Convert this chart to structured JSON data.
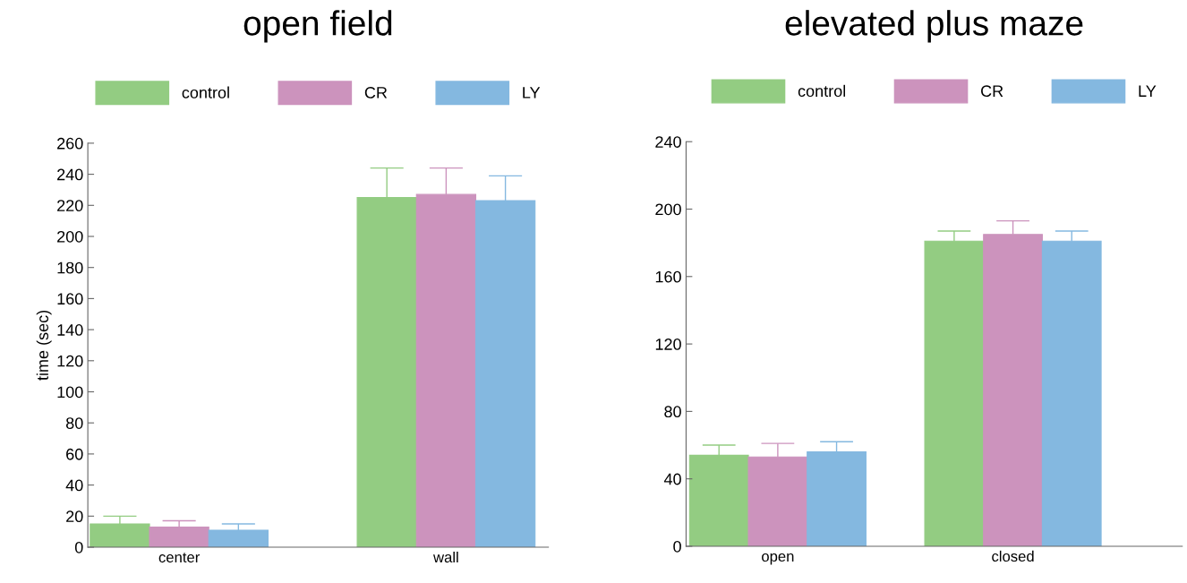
{
  "chart_data": [
    {
      "type": "bar",
      "title": "open field",
      "ylabel": "time (sec)",
      "categories": [
        "center",
        "wall"
      ],
      "ylim": [
        0,
        260
      ],
      "yticks": [
        0,
        20,
        40,
        60,
        80,
        100,
        120,
        140,
        160,
        180,
        200,
        220,
        240,
        260
      ],
      "legend": "top",
      "series": [
        {
          "name": "control",
          "color": "#93cc82",
          "values": [
            15,
            225
          ],
          "errors": [
            [
              15,
              20
            ],
            [
              225,
              244
            ]
          ]
        },
        {
          "name": "CR",
          "color": "#cc93bd",
          "values": [
            13,
            227
          ],
          "errors": [
            [
              13,
              17
            ],
            [
              227,
              244
            ]
          ]
        },
        {
          "name": "LY",
          "color": "#84b8e0",
          "values": [
            11,
            223
          ],
          "errors": [
            [
              11,
              15
            ],
            [
              223,
              239
            ]
          ]
        }
      ]
    },
    {
      "type": "bar",
      "title": "elevated plus maze",
      "categories": [
        "open",
        "closed"
      ],
      "ylim": [
        0,
        240
      ],
      "yticks": [
        0,
        40,
        80,
        120,
        160,
        200,
        240
      ],
      "legend": "top",
      "series": [
        {
          "name": "control",
          "color": "#93cc82",
          "values": [
            54,
            181
          ],
          "errors": [
            [
              54,
              60
            ],
            [
              181,
              187
            ]
          ]
        },
        {
          "name": "CR",
          "color": "#cc93bd",
          "values": [
            53,
            185
          ],
          "errors": [
            [
              53,
              61
            ],
            [
              185,
              193
            ]
          ]
        },
        {
          "name": "LY",
          "color": "#84b8e0",
          "values": [
            56,
            181
          ],
          "errors": [
            [
              56,
              62
            ],
            [
              181,
              187
            ]
          ]
        }
      ]
    }
  ]
}
